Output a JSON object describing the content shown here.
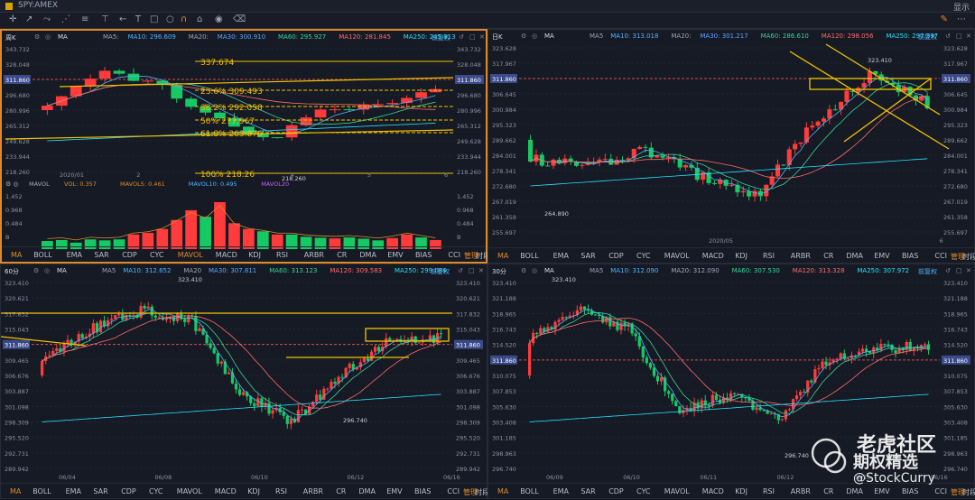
{
  "topbar": {
    "ticker": "SPY:AMEX",
    "right": "显示"
  },
  "panels": [
    {
      "id": "p1",
      "period": "周K",
      "ma_label": "MA",
      "ma": [
        {
          "t": "MA5:",
          "c": "#9aa4b8"
        },
        {
          "t": "MA10: 296.609",
          "c": "#4fb3ff"
        },
        {
          "t": "MA20:",
          "c": "#9aa4b8"
        },
        {
          "t": "MA30: 300.910",
          "c": "#5aa7ff"
        },
        {
          "t": "MA60: 295.927",
          "c": "#36d399"
        },
        {
          "t": "MA120: 281.845",
          "c": "#ff6b6b"
        },
        {
          "t": "MA250: 245.813",
          "c": "#29e0ff"
        }
      ],
      "fq": "前复权",
      "price_labels": [
        "343.732",
        "328.048",
        "311.860",
        "296.680",
        "280.996",
        "265.312",
        "249.628",
        "233.944",
        "218.260"
      ],
      "price_labels_right": [
        "343.732",
        "328.048",
        "311.860",
        "296.680",
        "280.996",
        "265.312",
        "249.628",
        "233.944",
        "218.260"
      ],
      "current": "311.860",
      "fib": [
        "337.674",
        "23.6%  309.493",
        "38.2%  292.058",
        "50%  277.967",
        "61.8%  263.876",
        "100%  218.26"
      ],
      "low_note": "218.260",
      "xdates": [
        "2020/01",
        "2",
        "3",
        "4",
        "5",
        "6"
      ],
      "vol_header": [
        {
          "t": "MAVOL",
          "c": "#aab"
        },
        {
          "t": "VOL: 0.357",
          "c": "#e0892a"
        },
        {
          "t": "MAVOL5: 0.461",
          "c": "#e0892a"
        },
        {
          "t": "MAVOL10: 0.495",
          "c": "#4fb3ff"
        },
        {
          "t": "MAVOL20",
          "c": "#c060ff"
        }
      ],
      "vol_labels": [
        "1.452",
        "0.968",
        "0.484",
        "B"
      ],
      "vol_labels_right": [
        "1.452",
        "0.968",
        "0.484",
        "B"
      ]
    },
    {
      "id": "p2",
      "period": "日K",
      "ma_label": "MA",
      "ma": [
        {
          "t": "MA5",
          "c": "#9aa4b8"
        },
        {
          "t": "MA10: 313.018",
          "c": "#4fb3ff"
        },
        {
          "t": "MA20:",
          "c": "#9aa4b8"
        },
        {
          "t": "MA30: 301.217",
          "c": "#5aa7ff"
        },
        {
          "t": "MA60: 286.610",
          "c": "#36d399"
        },
        {
          "t": "MA120: 298.056",
          "c": "#ff6b6b"
        },
        {
          "t": "MA250: 297.397",
          "c": "#29e0ff"
        }
      ],
      "fq": "前复权",
      "price_labels": [
        "323.628",
        "317.967",
        "311.860",
        "306.645",
        "300.984",
        "295.323",
        "289.662",
        "284.001",
        "278.341",
        "272.680",
        "267.019",
        "261.358",
        "255.697"
      ],
      "price_labels_right": [
        "323.628",
        "317.967",
        "311.860",
        "306.645",
        "300.984",
        "295.323",
        "289.662",
        "284.001",
        "278.341",
        "272.680",
        "267.019",
        "261.358",
        "255.697"
      ],
      "current": "311.860",
      "high_note": "323.410",
      "low_note": "264.890",
      "xdates": [
        "2020/05",
        "6"
      ]
    },
    {
      "id": "p3",
      "period": "60分",
      "ma_label": "MA",
      "ma": [
        {
          "t": "MA5",
          "c": "#9aa4b8"
        },
        {
          "t": "MA10: 312.652",
          "c": "#4fb3ff"
        },
        {
          "t": "MA20",
          "c": "#9aa4b8"
        },
        {
          "t": "MA30: 307.811",
          "c": "#5aa7ff"
        },
        {
          "t": "MA60: 313.123",
          "c": "#36d399"
        },
        {
          "t": "MA120: 309.583",
          "c": "#ff6b6b"
        },
        {
          "t": "MA250: 299.086",
          "c": "#29e0ff"
        }
      ],
      "fq": "前复权",
      "price_labels": [
        "323.410",
        "320.621",
        "317.832",
        "315.043",
        "311.860",
        "309.465",
        "306.676",
        "303.887",
        "301.098",
        "298.309",
        "295.520",
        "292.731",
        "289.942"
      ],
      "price_labels_right": [
        "323.410",
        "320.621",
        "317.832",
        "315.043",
        "311.860",
        "309.465",
        "306.676",
        "303.887",
        "301.098",
        "298.309",
        "295.520",
        "292.731",
        "289.942"
      ],
      "current": "311.860",
      "high_note": "323.410",
      "low_note": "296.740",
      "xdates": [
        "06/04",
        "06/08",
        "06/10",
        "06/12",
        "06/16"
      ]
    },
    {
      "id": "p4",
      "period": "30分",
      "ma_label": "MA",
      "ma": [
        {
          "t": "MA5",
          "c": "#9aa4b8"
        },
        {
          "t": "MA10: 312.090",
          "c": "#4fb3ff"
        },
        {
          "t": "MA20: 312.090",
          "c": "#9aa4b8"
        },
        {
          "t": "MA60: 307.530",
          "c": "#36d399"
        },
        {
          "t": "MA120: 313.328",
          "c": "#ff6b6b"
        },
        {
          "t": "MA250: 307.972",
          "c": "#29e0ff"
        }
      ],
      "fq": "前复权",
      "price_labels": [
        "323.410",
        "321.188",
        "318.965",
        "316.743",
        "314.520",
        "311.860",
        "310.075",
        "307.853",
        "305.630",
        "303.408",
        "301.185",
        "298.963",
        "296.740"
      ],
      "price_labels_right": [
        "323.410",
        "321.188",
        "318.965",
        "316.743",
        "314.520",
        "311.860",
        "310.075",
        "307.853",
        "305.630",
        "303.408",
        "301.185",
        "298.963",
        "296.740"
      ],
      "current": "311.860",
      "high_note": "323.410",
      "low_note": "296.740",
      "xdates": [
        "06/09",
        "06/10",
        "06/11",
        "06/12",
        "06/15",
        "06/16"
      ]
    }
  ],
  "indicators": [
    "MA",
    "BOLL",
    "EMA",
    "SAR",
    "CDP",
    "CYC",
    "MAVOL",
    "MACD",
    "KDJ",
    "RSI",
    "ARBR",
    "CR",
    "DMA",
    "EMV",
    "BIAS",
    "CCI",
    "时段"
  ],
  "manage": "管理",
  "watermark": {
    "line1": "老虎社区",
    "line2": "期权精选",
    "line3": "@StockCurry"
  },
  "colors": {
    "up": "#ff3b3b",
    "down": "#17c964",
    "gold": "#f2c200",
    "bg": "#161a24"
  }
}
